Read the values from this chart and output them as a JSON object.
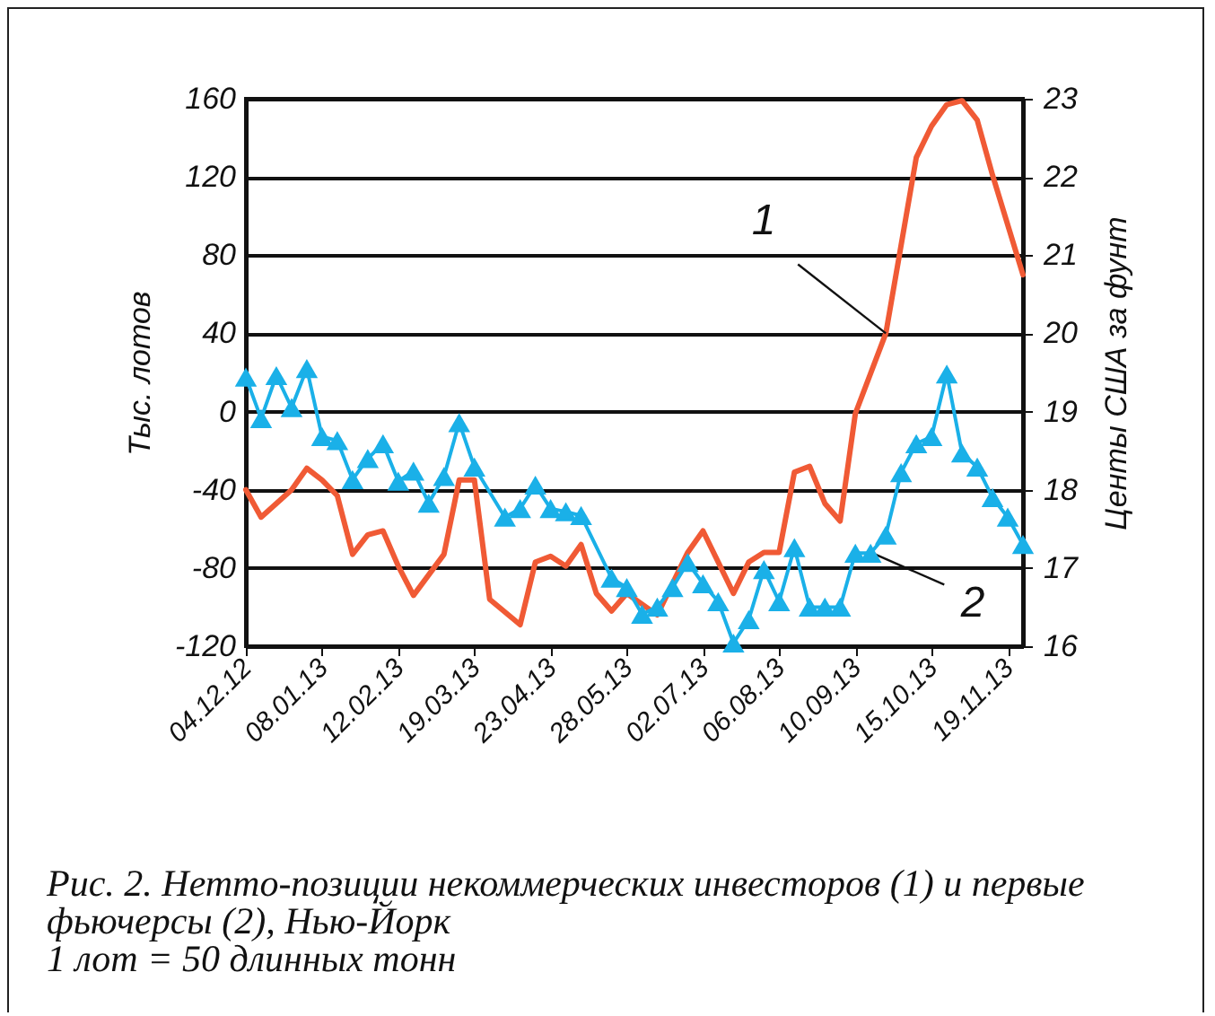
{
  "chart_data": {
    "type": "line",
    "xlabel": null,
    "ylabel": "Тыс. лотов",
    "y2label": "Центы США за фунт",
    "xlim": [
      "2012-12-04",
      "2013-11-26"
    ],
    "xticks": [
      {
        "value": "2012-12-04",
        "label": "04.12.12"
      },
      {
        "value": "2013-01-08",
        "label": "08.01.13"
      },
      {
        "value": "2013-02-12",
        "label": "12.02.13"
      },
      {
        "value": "2013-03-19",
        "label": "19.03.13"
      },
      {
        "value": "2013-04-23",
        "label": "23.04.13"
      },
      {
        "value": "2013-05-28",
        "label": "28.05.13"
      },
      {
        "value": "2013-07-02",
        "label": "02.07.13"
      },
      {
        "value": "2013-08-06",
        "label": "06.08.13"
      },
      {
        "value": "2013-09-10",
        "label": "10.09.13"
      },
      {
        "value": "2013-10-15",
        "label": "15.10.13"
      },
      {
        "value": "2013-11-19",
        "label": "19.11.13"
      }
    ],
    "ylim": [
      -120,
      160
    ],
    "yticks": [
      -120,
      -80,
      -40,
      0,
      40,
      80,
      120,
      160
    ],
    "y2lim": [
      16,
      23
    ],
    "y2ticks": [
      16,
      17,
      18,
      19,
      20,
      21,
      22,
      23
    ],
    "grid": "y",
    "series": [
      {
        "color": "#f05a35",
        "marker": "none",
        "x": [
          "2012-12-04",
          "2012-12-11",
          "2012-12-25",
          "2013-01-01",
          "2013-01-08",
          "2013-01-15",
          "2013-01-22",
          "2013-01-29",
          "2013-02-05",
          "2013-02-12",
          "2013-02-19",
          "2013-03-05",
          "2013-03-12",
          "2013-03-19",
          "2013-03-26",
          "2013-04-09",
          "2013-04-16",
          "2013-04-23",
          "2013-04-30",
          "2013-05-07",
          "2013-05-14",
          "2013-05-21",
          "2013-05-28",
          "2013-06-11",
          "2013-06-25",
          "2013-07-02",
          "2013-07-16",
          "2013-07-23",
          "2013-07-30",
          "2013-08-06",
          "2013-08-13",
          "2013-08-20",
          "2013-08-27",
          "2013-09-03",
          "2013-09-10",
          "2013-09-24",
          "2013-10-08",
          "2013-10-15",
          "2013-10-22",
          "2013-10-29",
          "2013-11-05",
          "2013-11-12",
          "2013-11-26"
        ],
        "values": [
          -40,
          -54,
          -40,
          -29,
          -35,
          -43,
          -73,
          -63,
          -61,
          -79,
          -94,
          -73,
          -35,
          -35,
          -96,
          -109,
          -77,
          -74,
          -79,
          -68,
          -93,
          -102,
          -93,
          -104,
          -72,
          -61,
          -93,
          -77,
          -72,
          -72,
          -31,
          -28,
          -47,
          -56,
          -1,
          40,
          130,
          146,
          157,
          159,
          149,
          121,
          70
        ]
      },
      {
        "color": "#1ab0e8",
        "marker": "triangle",
        "axis": "y2",
        "x": [
          "2012-12-04",
          "2012-12-11",
          "2012-12-18",
          "2012-12-25",
          "2013-01-01",
          "2013-01-08",
          "2013-01-15",
          "2013-01-22",
          "2013-01-29",
          "2013-02-05",
          "2013-02-12",
          "2013-02-19",
          "2013-02-26",
          "2013-03-05",
          "2013-03-12",
          "2013-03-19",
          "2013-04-02",
          "2013-04-09",
          "2013-04-16",
          "2013-04-23",
          "2013-04-30",
          "2013-05-07",
          "2013-05-21",
          "2013-05-28",
          "2013-06-04",
          "2013-06-11",
          "2013-06-18",
          "2013-06-25",
          "2013-07-02",
          "2013-07-09",
          "2013-07-16",
          "2013-07-23",
          "2013-07-30",
          "2013-08-06",
          "2013-08-13",
          "2013-08-20",
          "2013-08-27",
          "2013-09-03",
          "2013-09-10",
          "2013-09-17",
          "2013-09-24",
          "2013-10-01",
          "2013-10-08",
          "2013-10-15",
          "2013-10-22",
          "2013-10-29",
          "2013-11-05",
          "2013-11-12",
          "2013-11-19",
          "2013-11-26"
        ],
        "values": [
          19.44,
          18.91,
          19.46,
          19.05,
          19.55,
          18.68,
          18.63,
          18.13,
          18.4,
          18.59,
          18.11,
          18.24,
          17.83,
          18.17,
          18.86,
          18.29,
          17.65,
          17.76,
          18.06,
          17.76,
          17.72,
          17.67,
          16.87,
          16.75,
          16.41,
          16.5,
          16.75,
          17.07,
          16.8,
          16.57,
          16.04,
          16.34,
          16.98,
          16.57,
          17.26,
          16.5,
          16.5,
          16.5,
          17.19,
          17.19,
          17.42,
          18.22,
          18.59,
          18.68,
          19.48,
          18.47,
          18.29,
          17.9,
          17.65,
          17.3
        ]
      }
    ],
    "annotations": [
      {
        "text": "1",
        "x": "2013-09-24",
        "y": 40
      },
      {
        "text": "2",
        "x": "2013-09-17",
        "y": -72
      },
      "Рис. 2. Нетто-позиции некоммерческих инвесторов (1) и первые фьючерсы (2), Нью-Йорк",
      "1 лот = 50 длинных тонн"
    ]
  }
}
